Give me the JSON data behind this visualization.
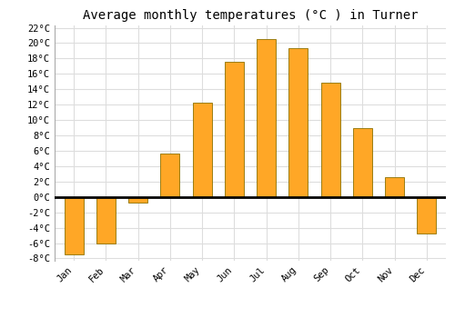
{
  "title": "Average monthly temperatures (°C ) in Turner",
  "months": [
    "Jan",
    "Feb",
    "Mar",
    "Apr",
    "May",
    "Jun",
    "Jul",
    "Aug",
    "Sep",
    "Oct",
    "Nov",
    "Dec"
  ],
  "values": [
    -7.5,
    -6.0,
    -0.7,
    5.7,
    12.2,
    17.6,
    20.5,
    19.4,
    14.8,
    9.0,
    2.6,
    -4.7
  ],
  "bar_color": "#FFA726",
  "bar_edge_color": "#8B7000",
  "background_color": "#ffffff",
  "grid_color": "#dddddd",
  "ylim_min": -8,
  "ylim_max": 22,
  "yticks": [
    -8,
    -6,
    -4,
    -2,
    0,
    2,
    4,
    6,
    8,
    10,
    12,
    14,
    16,
    18,
    20,
    22
  ],
  "ytick_labels": [
    "-8°C",
    "-6°C",
    "-4°C",
    "-2°C",
    "0°C",
    "2°C",
    "4°C",
    "6°C",
    "8°C",
    "10°C",
    "12°C",
    "14°C",
    "16°C",
    "18°C",
    "20°C",
    "22°C"
  ],
  "title_fontsize": 10,
  "tick_fontsize": 7.5,
  "bar_width": 0.6
}
